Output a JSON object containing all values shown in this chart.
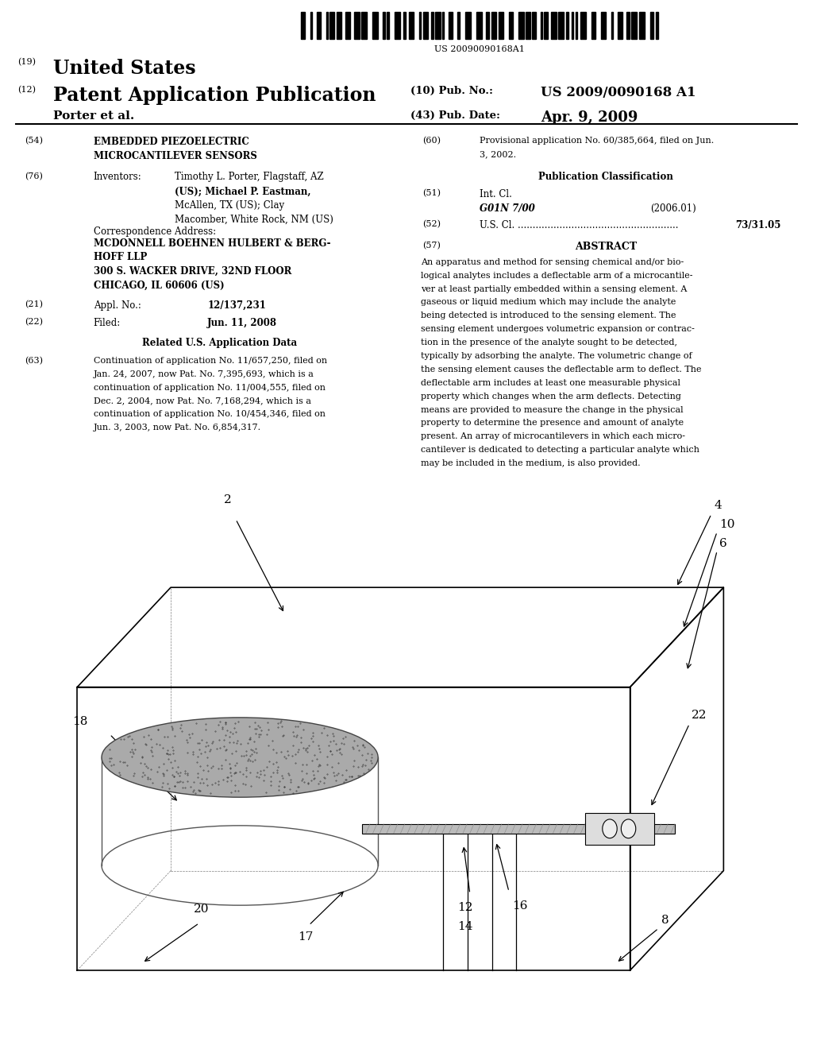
{
  "background_color": "#ffffff",
  "barcode_text": "US 20090090168A1",
  "title_19": "(19)",
  "title_country": "United States",
  "title_12": "(12)",
  "title_pubtype": "Patent Application Publication",
  "title_10": "(10) Pub. No.:",
  "pub_no": "US 2009/0090168 A1",
  "author": "Porter et al.",
  "title_43": "(43) Pub. Date:",
  "pub_date": "Apr. 9, 2009",
  "field_54": "(54)",
  "invention_title_line1": "EMBEDDED PIEZOELECTRIC",
  "invention_title_line2": "MICROCANTILEVER SENSORS",
  "field_76": "(76)",
  "inventors_label": "Inventors:",
  "inventors_text": "Timothy L. Porter, Flagstaff, AZ\n(US); Michael P. Eastman,\nMcAllen, TX (US); Clay\nMacomber, White Rock, NM (US)",
  "corr_address_label": "Correspondence Address:",
  "corr_address_bold": "MCDONNELL BOEHNEN HULBERT & BERG-\nHOFF LLP\n300 S. WACKER DRIVE, 32ND FLOOR\nCHICAGO, IL 60606 (US)",
  "field_21": "(21)",
  "appl_no_label": "Appl. No.:",
  "appl_no": "12/137,231",
  "field_22": "(22)",
  "filed_label": "Filed:",
  "filed_date": "Jun. 11, 2008",
  "related_data_title": "Related U.S. Application Data",
  "field_63": "(63)",
  "continuation_text": "Continuation of application No. 11/657,250, filed on\nJan. 24, 2007, now Pat. No. 7,395,693, which is a\ncontinuation of application No. 11/004,555, filed on\nDec. 2, 2004, now Pat. No. 7,168,294, which is a\ncontinuation of application No. 10/454,346, filed on\nJun. 3, 2003, now Pat. No. 6,854,317.",
  "field_60": "(60)",
  "provisional_text": "Provisional application No. 60/385,664, filed on Jun.\n3, 2002.",
  "pub_class_title": "Publication Classification",
  "field_51": "(51)",
  "intl_cl_label": "Int. Cl.",
  "intl_cl_code": "G01N 7/00",
  "intl_cl_date": "(2006.01)",
  "field_52": "(52)",
  "us_cl_label": "U.S. Cl.",
  "us_cl_dots": "......................................................",
  "us_cl_value": "73/31.05",
  "field_57": "(57)",
  "abstract_title": "ABSTRACT",
  "abstract_lines": [
    "An apparatus and method for sensing chemical and/or bio-",
    "logical analytes includes a deflectable arm of a microcantile-",
    "ver at least partially embedded within a sensing element. A",
    "gaseous or liquid medium which may include the analyte",
    "being detected is introduced to the sensing element. The",
    "sensing element undergoes volumetric expansion or contrac-",
    "tion in the presence of the analyte sought to be detected,",
    "typically by adsorbing the analyte. The volumetric change of",
    "the sensing element causes the deflectable arm to deflect. The",
    "deflectable arm includes at least one measurable physical",
    "property which changes when the arm deflects. Detecting",
    "means are provided to measure the change in the physical",
    "property to determine the presence and amount of analyte",
    "present. An array of microcantilevers in which each micro-",
    "cantilever is dedicated to detecting a particular analyte which",
    "may be included in the medium, is also provided."
  ]
}
